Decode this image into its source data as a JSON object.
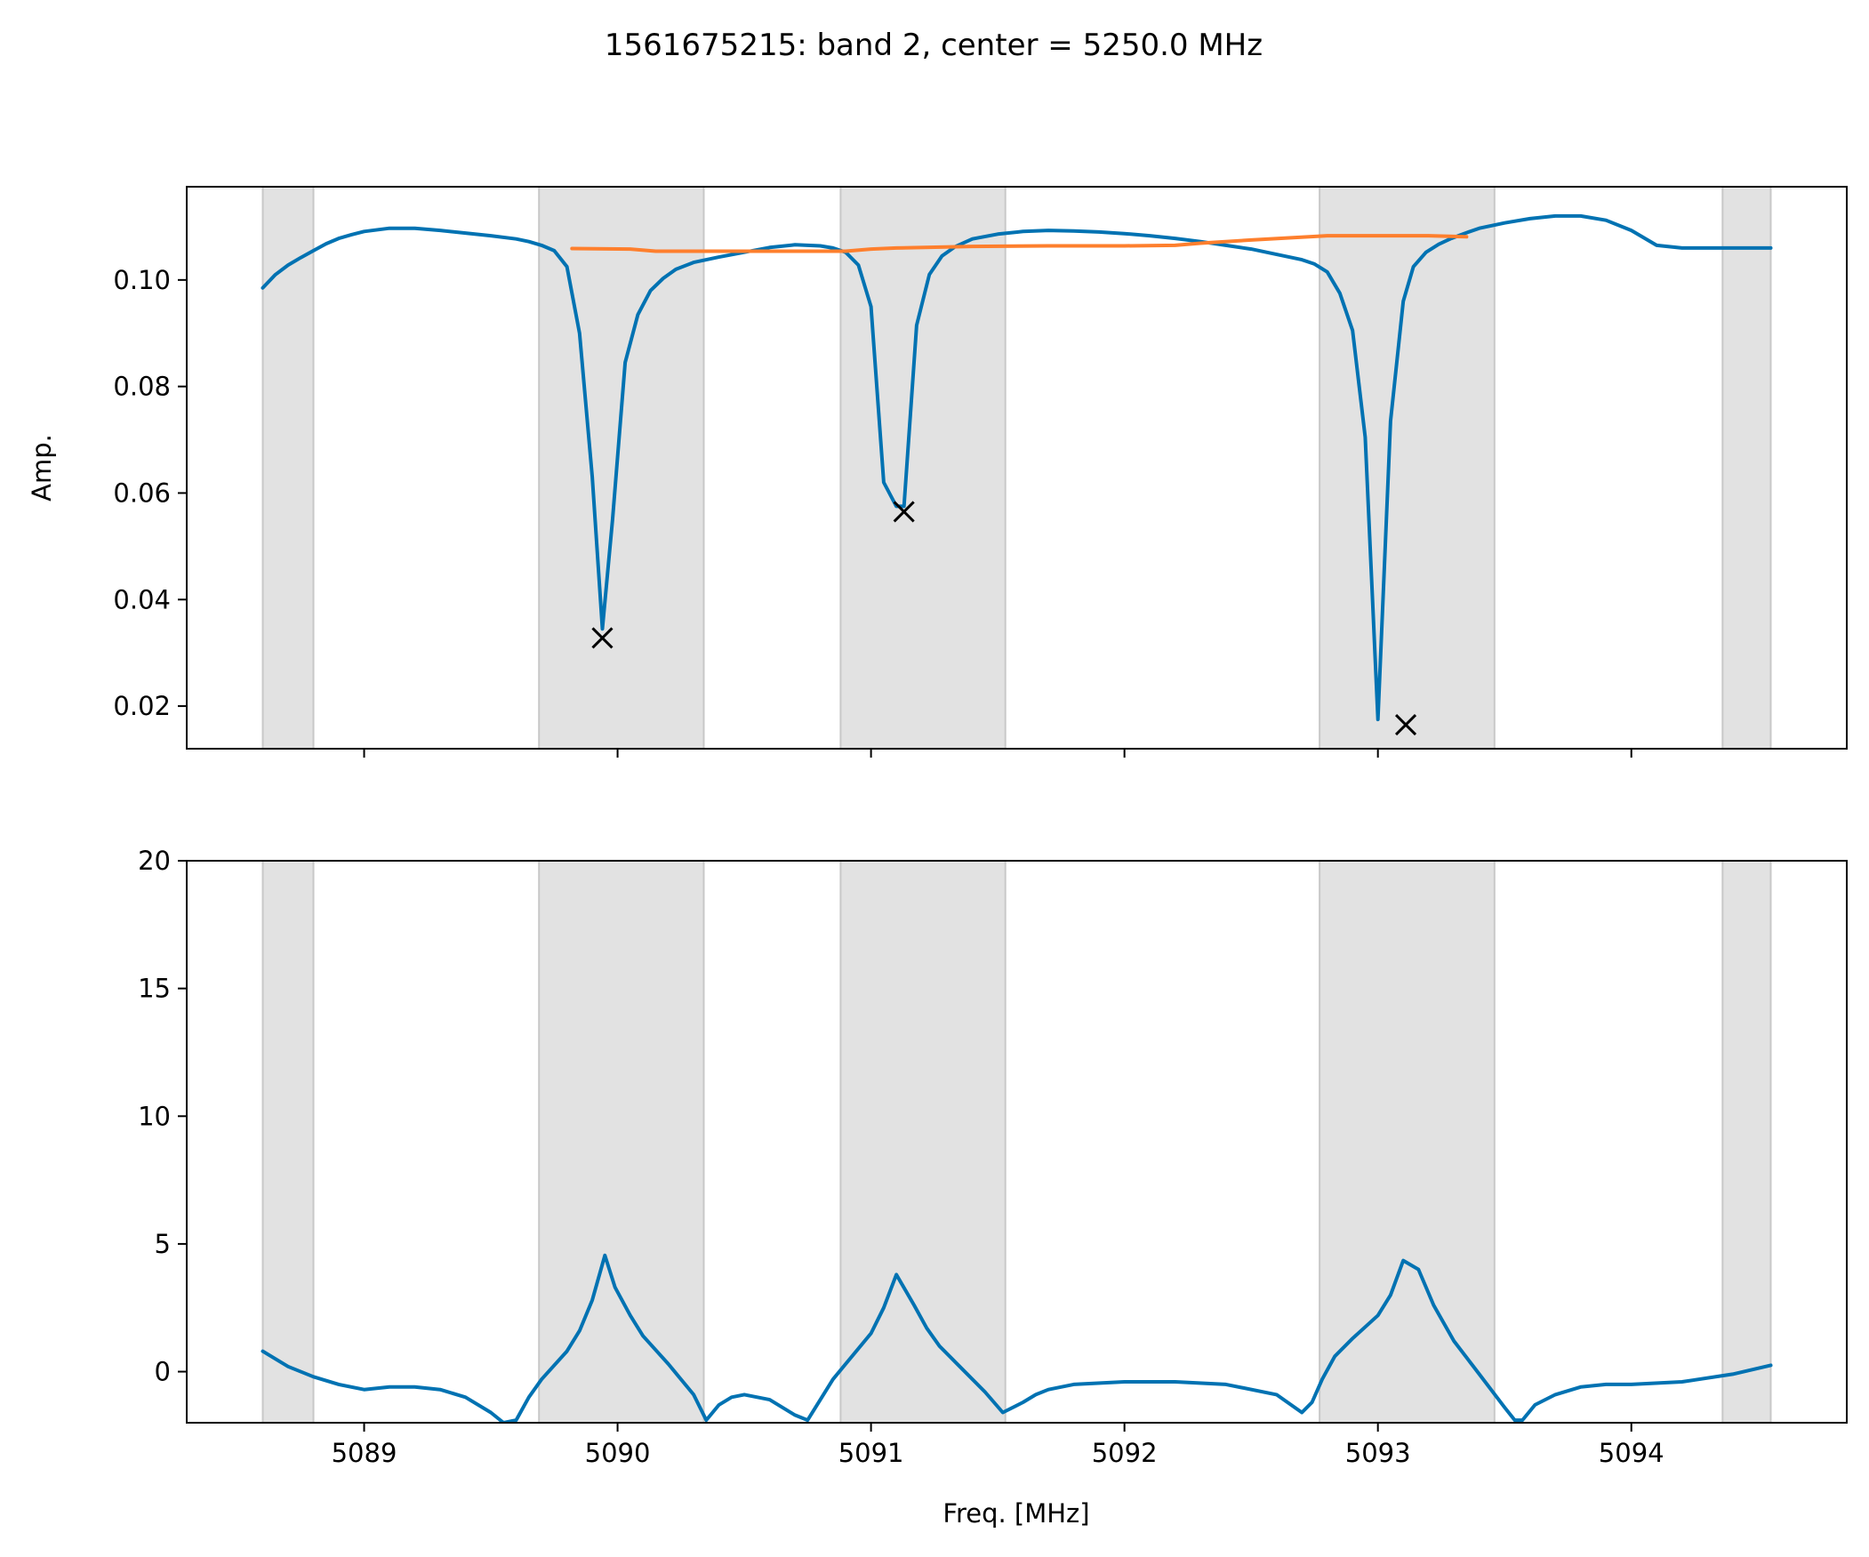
{
  "figure": {
    "title": "1561675215: band 2, center = 5250.0 MHz"
  },
  "chart_data": [
    {
      "type": "line",
      "panel": "top",
      "title": "",
      "xlabel": "",
      "ylabel": "Amp.",
      "xlim": [
        5088.3,
        5094.85
      ],
      "ylim": [
        0.012,
        0.1175
      ],
      "xticks": [
        5089,
        5090,
        5091,
        5092,
        5093,
        5094
      ],
      "show_xtick_labels": false,
      "yticks": [
        0.02,
        0.04,
        0.06,
        0.08,
        0.1
      ],
      "ytick_labels": [
        "0.02",
        "0.04",
        "0.06",
        "0.08",
        "0.10"
      ],
      "grid": false,
      "shaded_regions": [
        [
          5088.6,
          5088.8
        ],
        [
          5089.69,
          5090.34
        ],
        [
          5090.88,
          5091.53
        ],
        [
          5092.77,
          5093.46
        ],
        [
          5094.36,
          5094.55
        ]
      ],
      "series": [
        {
          "color": "#0072b2",
          "x": [
            5088.6,
            5088.65,
            5088.7,
            5088.75,
            5088.8,
            5088.85,
            5088.9,
            5088.95,
            5089.0,
            5089.1,
            5089.2,
            5089.3,
            5089.4,
            5089.5,
            5089.6,
            5089.65,
            5089.7,
            5089.75,
            5089.8,
            5089.85,
            5089.9,
            5089.94,
            5089.98,
            5090.03,
            5090.08,
            5090.13,
            5090.18,
            5090.23,
            5090.3,
            5090.4,
            5090.5,
            5090.6,
            5090.7,
            5090.8,
            5090.85,
            5090.9,
            5090.95,
            5091.0,
            5091.05,
            5091.1,
            5091.13,
            5091.18,
            5091.23,
            5091.28,
            5091.33,
            5091.4,
            5091.5,
            5091.6,
            5091.7,
            5091.8,
            5091.9,
            5092.0,
            5092.1,
            5092.2,
            5092.3,
            5092.4,
            5092.5,
            5092.6,
            5092.7,
            5092.75,
            5092.8,
            5092.85,
            5092.9,
            5092.95,
            5093.0,
            5093.05,
            5093.1,
            5093.14,
            5093.19,
            5093.24,
            5093.29,
            5093.34,
            5093.4,
            5093.5,
            5093.6,
            5093.7,
            5093.8,
            5093.9,
            5094.0,
            5094.1,
            5094.2,
            5094.3,
            5094.4,
            5094.5,
            5094.55
          ],
          "y": [
            0.0985,
            0.101,
            0.1028,
            0.1042,
            0.1055,
            0.1068,
            0.1078,
            0.1085,
            0.1091,
            0.1097,
            0.1097,
            0.1093,
            0.1088,
            0.1083,
            0.1077,
            0.1072,
            0.1065,
            0.1055,
            0.1025,
            0.09,
            0.063,
            0.0345,
            0.055,
            0.0845,
            0.0935,
            0.098,
            0.1003,
            0.102,
            0.1033,
            0.1043,
            0.1052,
            0.1061,
            0.1066,
            0.1064,
            0.106,
            0.1052,
            0.1028,
            0.095,
            0.062,
            0.0575,
            0.0575,
            0.0915,
            0.101,
            0.1045,
            0.1062,
            0.1077,
            0.1086,
            0.1091,
            0.1093,
            0.1092,
            0.109,
            0.1087,
            0.1083,
            0.1078,
            0.1072,
            0.1065,
            0.1058,
            0.1048,
            0.1038,
            0.103,
            0.1015,
            0.0975,
            0.0905,
            0.0705,
            0.0175,
            0.0735,
            0.096,
            0.1025,
            0.1052,
            0.1067,
            0.1078,
            0.1087,
            0.1097,
            0.1107,
            0.1115,
            0.112,
            0.112,
            0.1112,
            0.1093,
            0.1065,
            0.106,
            0.106,
            0.106,
            0.106,
            0.106
          ]
        },
        {
          "color": "#fe7f2d",
          "x": [
            5089.82,
            5090.05,
            5090.15,
            5090.3,
            5090.6,
            5090.9,
            5091.0,
            5091.1,
            5091.4,
            5091.7,
            5092.0,
            5092.2,
            5092.3,
            5092.5,
            5092.8,
            5093.0,
            5093.2,
            5093.35
          ],
          "y": [
            0.1059,
            0.1058,
            0.1054,
            0.1054,
            0.1054,
            0.1054,
            0.1058,
            0.106,
            0.1063,
            0.1064,
            0.1064,
            0.1065,
            0.1069,
            0.1075,
            0.1083,
            0.1083,
            0.1083,
            0.1081
          ]
        }
      ],
      "markers": {
        "symbol": "x",
        "color": "#000000",
        "x": [
          5089.94,
          5091.13,
          5093.11
        ],
        "y": [
          0.0328,
          0.0565,
          0.0165
        ]
      }
    },
    {
      "type": "line",
      "panel": "bottom",
      "title": "",
      "xlabel": "Freq. [MHz]",
      "ylabel": "",
      "xlim": [
        5088.3,
        5094.85
      ],
      "ylim": [
        -2,
        20
      ],
      "xticks": [
        5089,
        5090,
        5091,
        5092,
        5093,
        5094
      ],
      "xtick_labels": [
        "5089",
        "5090",
        "5091",
        "5092",
        "5093",
        "5094"
      ],
      "yticks": [
        0,
        5,
        10,
        15,
        20
      ],
      "ytick_labels": [
        "0",
        "5",
        "10",
        "15",
        "20"
      ],
      "grid": false,
      "shaded_regions": [
        [
          5088.6,
          5088.8
        ],
        [
          5089.69,
          5090.34
        ],
        [
          5090.88,
          5091.53
        ],
        [
          5092.77,
          5093.46
        ],
        [
          5094.36,
          5094.55
        ]
      ],
      "series": [
        {
          "color": "#0072b2",
          "x": [
            5088.6,
            5088.7,
            5088.8,
            5088.9,
            5089.0,
            5089.1,
            5089.2,
            5089.3,
            5089.4,
            5089.5,
            5089.55,
            5089.6,
            5089.65,
            5089.7,
            5089.8,
            5089.85,
            5089.9,
            5089.95,
            5089.99,
            5090.05,
            5090.1,
            5090.2,
            5090.3,
            5090.35,
            5090.4,
            5090.45,
            5090.5,
            5090.6,
            5090.7,
            5090.75,
            5090.8,
            5090.85,
            5090.9,
            5091.0,
            5091.05,
            5091.1,
            5091.17,
            5091.22,
            5091.27,
            5091.35,
            5091.45,
            5091.52,
            5091.6,
            5091.65,
            5091.7,
            5091.8,
            5092.0,
            5092.2,
            5092.4,
            5092.6,
            5092.7,
            5092.74,
            5092.78,
            5092.83,
            5092.9,
            5093.0,
            5093.05,
            5093.1,
            5093.16,
            5093.22,
            5093.3,
            5093.4,
            5093.5,
            5093.54,
            5093.57,
            5093.62,
            5093.7,
            5093.8,
            5093.9,
            5094.0,
            5094.2,
            5094.4,
            5094.55
          ],
          "y": [
            0.8,
            0.2,
            -0.2,
            -0.5,
            -0.7,
            -0.6,
            -0.6,
            -0.7,
            -1.0,
            -1.6,
            -2.0,
            -1.9,
            -1.0,
            -0.3,
            0.8,
            1.6,
            2.8,
            4.55,
            3.3,
            2.2,
            1.4,
            0.3,
            -0.9,
            -1.9,
            -1.3,
            -1.0,
            -0.9,
            -1.1,
            -1.7,
            -1.9,
            -1.1,
            -0.3,
            0.3,
            1.5,
            2.5,
            3.8,
            2.6,
            1.7,
            1.0,
            0.2,
            -0.8,
            -1.6,
            -1.2,
            -0.9,
            -0.7,
            -0.5,
            -0.4,
            -0.4,
            -0.5,
            -0.9,
            -1.6,
            -1.2,
            -0.3,
            0.6,
            1.3,
            2.2,
            3.0,
            4.35,
            4.0,
            2.6,
            1.2,
            -0.1,
            -1.4,
            -1.9,
            -1.9,
            -1.3,
            -0.9,
            -0.6,
            -0.5,
            -0.5,
            -0.4,
            -0.1,
            0.25
          ]
        }
      ]
    }
  ]
}
